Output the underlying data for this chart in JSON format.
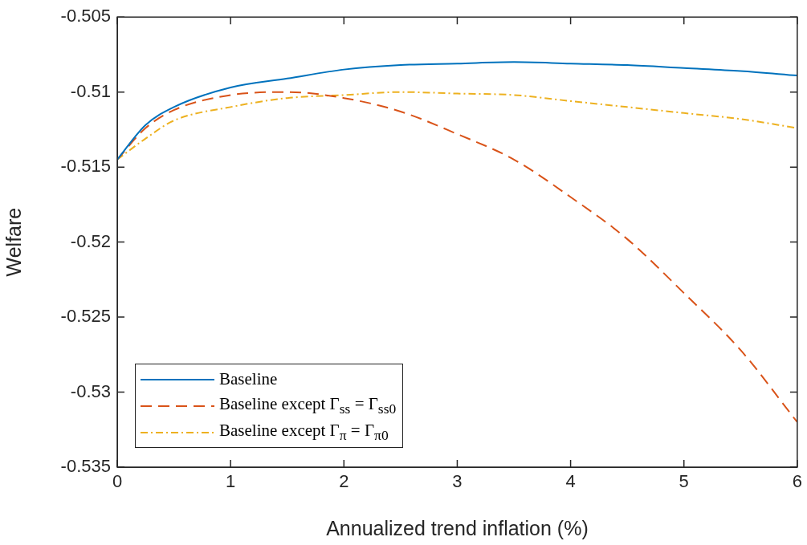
{
  "chart_data": {
    "type": "line",
    "xlabel": "Annualized trend inflation (%)",
    "ylabel": "Welfare",
    "x": [
      0,
      0.25,
      0.5,
      1,
      1.5,
      2,
      2.5,
      3,
      3.5,
      4,
      4.5,
      5,
      5.5,
      6
    ],
    "series": [
      {
        "name": "Baseline",
        "color": "#0072bd",
        "line_style": "solid",
        "values": [
          -0.5145,
          -0.5122,
          -0.511,
          -0.5097,
          -0.5091,
          -0.5085,
          -0.5082,
          -0.5081,
          -0.508,
          -0.5081,
          -0.5082,
          -0.5084,
          -0.5086,
          -0.5089
        ]
      },
      {
        "name": "Baseline except Γ$_{ss}$ = Γ$_{ss0}$",
        "color": "#d95319",
        "line_style": "dashed",
        "values": [
          -0.5145,
          -0.5124,
          -0.5112,
          -0.5102,
          -0.51,
          -0.5104,
          -0.5113,
          -0.5128,
          -0.5145,
          -0.517,
          -0.5198,
          -0.5234,
          -0.5272,
          -0.532
        ]
      },
      {
        "name": "Baseline except Γ$_{π}$ = Γ$_{π0}$",
        "color": "#edb120",
        "line_style": "dashdot",
        "values": [
          -0.5145,
          -0.5131,
          -0.5119,
          -0.511,
          -0.5104,
          -0.5102,
          -0.51,
          -0.5101,
          -0.5102,
          -0.5106,
          -0.511,
          -0.5114,
          -0.5118,
          -0.5124
        ]
      }
    ],
    "xlim": [
      0,
      6
    ],
    "xticks": [
      0,
      1,
      2,
      3,
      4,
      5,
      6
    ],
    "ylim": [
      -0.535,
      -0.505
    ],
    "yticks": [
      -0.535,
      -0.53,
      -0.525,
      -0.52,
      -0.515,
      -0.51,
      -0.505
    ],
    "grid": false,
    "legend": "bottom left",
    "marker": "none"
  }
}
